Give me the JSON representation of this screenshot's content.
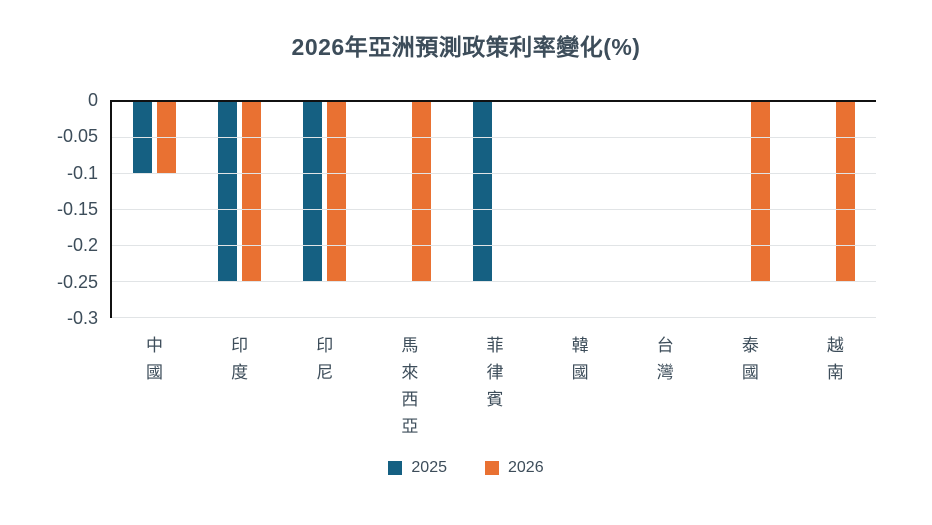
{
  "title": "2026年亞洲預測政策利率變化(%)",
  "chart_data": {
    "type": "bar",
    "title": "2026年亞洲預測政策利率變化(%)",
    "categories": [
      "中國",
      "印度",
      "印尼",
      "馬來西亞",
      "菲律賓",
      "韓國",
      "台灣",
      "泰國",
      "越南"
    ],
    "series": [
      {
        "name": "2025",
        "color": "#156082",
        "values": [
          -0.1,
          -0.25,
          -0.25,
          null,
          -0.25,
          null,
          null,
          null,
          null
        ]
      },
      {
        "name": "2026",
        "color": "#E97132",
        "values": [
          -0.1,
          -0.25,
          -0.25,
          -0.25,
          null,
          null,
          null,
          -0.25,
          -0.25
        ]
      }
    ],
    "xlabel": "",
    "ylabel": "",
    "ylim": [
      -0.3,
      0
    ],
    "yticks": [
      0,
      -0.05,
      -0.1,
      -0.15,
      -0.2,
      -0.25,
      -0.3
    ],
    "ytick_labels": [
      "0",
      "-0.05",
      "-0.1",
      "-0.15",
      "-0.2",
      "-0.25",
      "-0.3"
    ],
    "grid": true,
    "gridline_color": "#e1e4e6",
    "zero_line_color": "#111111",
    "legend_position": "bottom",
    "bar_orientation": "vertical-negative"
  },
  "legend": {
    "items": [
      {
        "label": "2025",
        "color": "#156082"
      },
      {
        "label": "2026",
        "color": "#E97132"
      }
    ]
  }
}
